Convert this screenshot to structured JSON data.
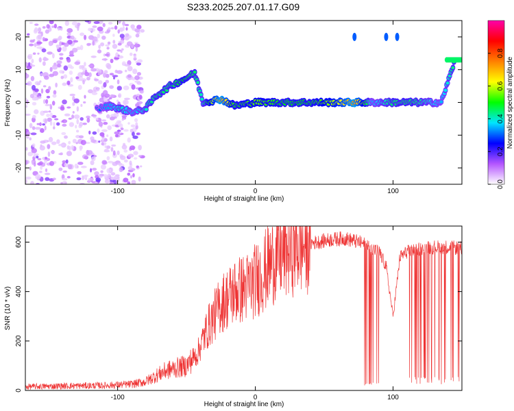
{
  "title": "S233.2025.207.01.17.G09",
  "chart_data": [
    {
      "type": "heatmap",
      "xlabel": "Height of straight line (km)",
      "ylabel": "Frequency (Hz)",
      "xlim": [
        -167,
        150
      ],
      "ylim": [
        -25,
        25
      ],
      "xticks": [
        -100,
        0,
        100
      ],
      "yticks": [
        -20,
        -10,
        0,
        10,
        20
      ],
      "colorbar": {
        "label": "Normalized spectral amplitude",
        "range": [
          0,
          1
        ],
        "ticks": [
          0.0,
          0.2,
          0.4,
          0.6,
          0.8
        ],
        "colors": [
          "#ffffff",
          "#b455ff",
          "#0000ff",
          "#00e5ff",
          "#00ff00",
          "#ffff00",
          "#ff8000",
          "#ff0000",
          "#ff00aa"
        ]
      },
      "ridge": [
        {
          "x": -115,
          "f": -2,
          "a": 0.3
        },
        {
          "x": -105,
          "f": -1,
          "a": 0.35
        },
        {
          "x": -98,
          "f": -2,
          "a": 0.4
        },
        {
          "x": -88,
          "f": -3,
          "a": 0.35
        },
        {
          "x": -80,
          "f": -2,
          "a": 0.4
        },
        {
          "x": -72,
          "f": 2,
          "a": 0.45
        },
        {
          "x": -62,
          "f": 5,
          "a": 0.45
        },
        {
          "x": -52,
          "f": 7,
          "a": 0.5
        },
        {
          "x": -44,
          "f": 9,
          "a": 0.45
        },
        {
          "x": -38,
          "f": 0,
          "a": 0.4
        },
        {
          "x": -25,
          "f": 1,
          "a": 0.75
        },
        {
          "x": -15,
          "f": -1,
          "a": 0.5
        },
        {
          "x": 0,
          "f": 0,
          "a": 0.55
        },
        {
          "x": 20,
          "f": 0,
          "a": 0.5
        },
        {
          "x": 40,
          "f": 0,
          "a": 0.5
        },
        {
          "x": 60,
          "f": 0,
          "a": 0.6
        },
        {
          "x": 72,
          "f": 0,
          "a": 0.75
        },
        {
          "x": 85,
          "f": 0,
          "a": 0.35
        },
        {
          "x": 100,
          "f": 0,
          "a": 0.45
        },
        {
          "x": 115,
          "f": 0,
          "a": 0.45
        },
        {
          "x": 135,
          "f": 0,
          "a": 0.35
        },
        {
          "x": 145,
          "f": 13,
          "a": 0.45
        }
      ]
    },
    {
      "type": "line",
      "xlabel": "Height of straight line (km)",
      "ylabel": "SNR (10 * v/v)",
      "xlim": [
        -167,
        150
      ],
      "ylim": [
        0,
        665
      ],
      "xticks": [
        -100,
        0,
        100
      ],
      "yticks": [
        0,
        200,
        400,
        600
      ],
      "color": "#ee3333",
      "x": [
        -167,
        -140,
        -110,
        -90,
        -80,
        -72,
        -65,
        -58,
        -50,
        -42,
        -35,
        -25,
        -15,
        -5,
        5,
        15,
        25,
        35,
        45,
        55,
        65,
        75,
        80,
        90,
        95,
        100,
        105,
        110,
        120,
        130,
        140,
        150
      ],
      "y": [
        15,
        18,
        20,
        25,
        35,
        60,
        80,
        90,
        100,
        150,
        250,
        350,
        400,
        420,
        470,
        540,
        575,
        590,
        600,
        610,
        615,
        600,
        590,
        560,
        500,
        300,
        540,
        560,
        575,
        580,
        580,
        575
      ]
    }
  ]
}
